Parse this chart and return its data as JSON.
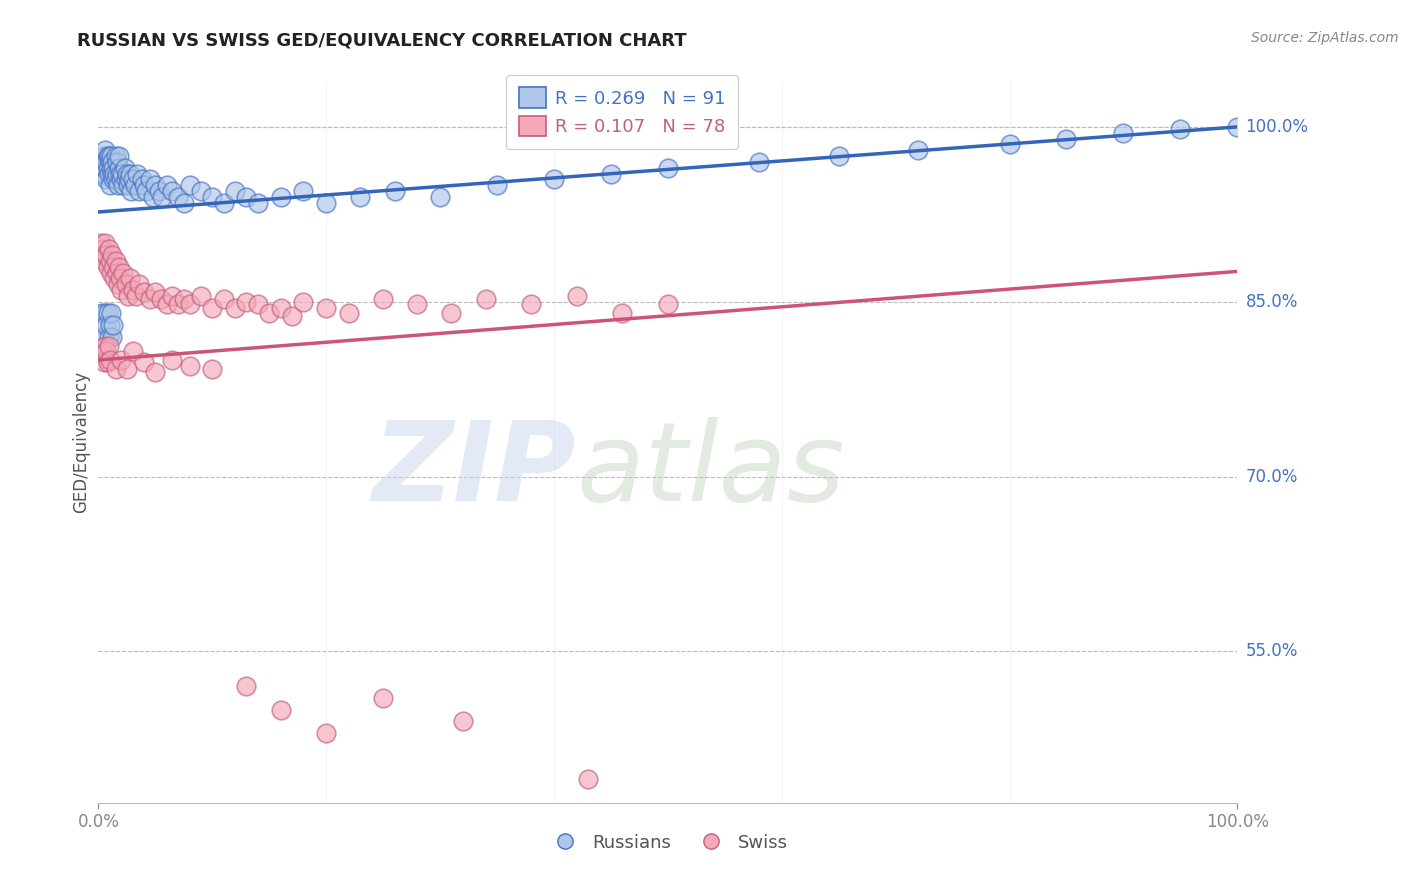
{
  "title": "RUSSIAN VS SWISS GED/EQUIVALENCY CORRELATION CHART",
  "source": "Source: ZipAtlas.com",
  "ylabel": "GED/Equivalency",
  "xlim": [
    0.0,
    1.0
  ],
  "ylim": [
    0.42,
    1.04
  ],
  "yticks": [
    0.55,
    0.7,
    0.85,
    1.0
  ],
  "ytick_labels": [
    "55.0%",
    "70.0%",
    "85.0%",
    "100.0%"
  ],
  "russian_color": "#aec6e8",
  "russian_edge_color": "#4472c4",
  "swiss_color": "#f4a8b8",
  "swiss_edge_color": "#c06080",
  "russian_line_color": "#3366bb",
  "swiss_line_color": "#cc5577",
  "legend_russian_label": "R = 0.269   N = 91",
  "legend_swiss_label": "R = 0.107   N = 78",
  "legend_label_russians": "Russians",
  "legend_label_swiss": "Swiss",
  "russian_line_x0": 0.0,
  "russian_line_y0": 0.927,
  "russian_line_x1": 1.0,
  "russian_line_y1": 1.0,
  "swiss_line_x0": 0.0,
  "swiss_line_y0": 0.8,
  "swiss_line_x1": 1.0,
  "swiss_line_y1": 0.876,
  "russian_x": [
    0.003,
    0.004,
    0.005,
    0.005,
    0.006,
    0.006,
    0.007,
    0.007,
    0.008,
    0.008,
    0.009,
    0.009,
    0.01,
    0.01,
    0.011,
    0.011,
    0.012,
    0.012,
    0.013,
    0.013,
    0.014,
    0.015,
    0.015,
    0.016,
    0.016,
    0.017,
    0.018,
    0.018,
    0.019,
    0.02,
    0.021,
    0.022,
    0.023,
    0.024,
    0.025,
    0.026,
    0.027,
    0.028,
    0.029,
    0.03,
    0.032,
    0.034,
    0.036,
    0.038,
    0.04,
    0.042,
    0.045,
    0.048,
    0.05,
    0.053,
    0.056,
    0.06,
    0.065,
    0.07,
    0.075,
    0.08,
    0.09,
    0.1,
    0.11,
    0.12,
    0.13,
    0.14,
    0.16,
    0.18,
    0.2,
    0.23,
    0.26,
    0.3,
    0.35,
    0.4,
    0.45,
    0.5,
    0.58,
    0.65,
    0.72,
    0.8,
    0.85,
    0.9,
    0.95,
    1.0,
    0.003,
    0.004,
    0.005,
    0.006,
    0.007,
    0.008,
    0.009,
    0.01,
    0.011,
    0.012,
    0.013
  ],
  "russian_y": [
    0.97,
    0.96,
    0.975,
    0.96,
    0.965,
    0.98,
    0.97,
    0.955,
    0.965,
    0.975,
    0.96,
    0.975,
    0.97,
    0.95,
    0.965,
    0.975,
    0.96,
    0.97,
    0.955,
    0.965,
    0.96,
    0.975,
    0.955,
    0.96,
    0.97,
    0.95,
    0.965,
    0.975,
    0.96,
    0.955,
    0.96,
    0.95,
    0.965,
    0.955,
    0.96,
    0.95,
    0.955,
    0.96,
    0.945,
    0.955,
    0.95,
    0.96,
    0.945,
    0.955,
    0.95,
    0.945,
    0.955,
    0.94,
    0.95,
    0.945,
    0.94,
    0.95,
    0.945,
    0.94,
    0.935,
    0.95,
    0.945,
    0.94,
    0.935,
    0.945,
    0.94,
    0.935,
    0.94,
    0.945,
    0.935,
    0.94,
    0.945,
    0.94,
    0.95,
    0.955,
    0.96,
    0.965,
    0.97,
    0.975,
    0.98,
    0.985,
    0.99,
    0.995,
    0.998,
    1.0,
    0.84,
    0.83,
    0.82,
    0.84,
    0.83,
    0.84,
    0.82,
    0.83,
    0.84,
    0.82,
    0.83
  ],
  "swiss_x": [
    0.002,
    0.003,
    0.004,
    0.005,
    0.006,
    0.007,
    0.008,
    0.009,
    0.01,
    0.011,
    0.012,
    0.013,
    0.014,
    0.015,
    0.016,
    0.017,
    0.018,
    0.019,
    0.02,
    0.022,
    0.024,
    0.026,
    0.028,
    0.03,
    0.033,
    0.036,
    0.04,
    0.045,
    0.05,
    0.055,
    0.06,
    0.065,
    0.07,
    0.075,
    0.08,
    0.09,
    0.1,
    0.11,
    0.12,
    0.13,
    0.14,
    0.15,
    0.16,
    0.17,
    0.18,
    0.2,
    0.22,
    0.25,
    0.28,
    0.31,
    0.34,
    0.38,
    0.42,
    0.46,
    0.5,
    0.003,
    0.004,
    0.005,
    0.006,
    0.007,
    0.008,
    0.009,
    0.01,
    0.015,
    0.02,
    0.025,
    0.03,
    0.04,
    0.05,
    0.065,
    0.08,
    0.1,
    0.13,
    0.16,
    0.2,
    0.25,
    0.32,
    0.43
  ],
  "swiss_y": [
    0.9,
    0.895,
    0.89,
    0.885,
    0.9,
    0.89,
    0.88,
    0.895,
    0.885,
    0.875,
    0.89,
    0.88,
    0.87,
    0.885,
    0.875,
    0.865,
    0.88,
    0.87,
    0.86,
    0.875,
    0.865,
    0.855,
    0.87,
    0.86,
    0.855,
    0.865,
    0.858,
    0.852,
    0.858,
    0.852,
    0.848,
    0.855,
    0.848,
    0.852,
    0.848,
    0.855,
    0.845,
    0.852,
    0.845,
    0.85,
    0.848,
    0.84,
    0.845,
    0.838,
    0.85,
    0.845,
    0.84,
    0.852,
    0.848,
    0.84,
    0.852,
    0.848,
    0.855,
    0.84,
    0.848,
    0.81,
    0.805,
    0.798,
    0.812,
    0.808,
    0.798,
    0.812,
    0.8,
    0.792,
    0.8,
    0.792,
    0.808,
    0.798,
    0.79,
    0.8,
    0.795,
    0.792,
    0.52,
    0.5,
    0.48,
    0.51,
    0.49,
    0.44
  ]
}
